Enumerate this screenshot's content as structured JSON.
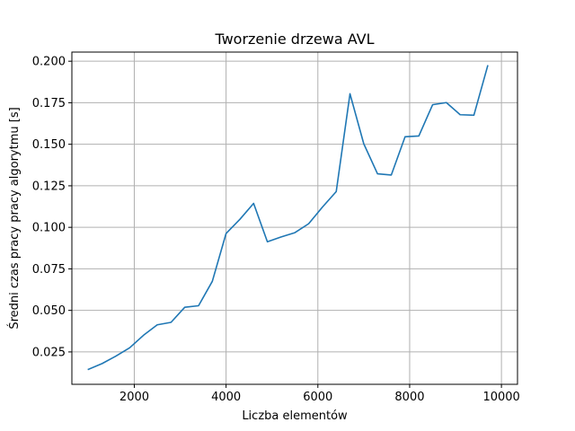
{
  "chart_data": {
    "type": "line",
    "title": "Tworzenie drzewa AVL",
    "xlabel": "Liczba elementów",
    "ylabel": "Średni czas pracy pracy algorytmu [s]",
    "xlim": [
      640,
      10350
    ],
    "ylim": [
      0.0055,
      0.2055
    ],
    "x_ticks": [
      2000,
      4000,
      6000,
      8000,
      10000
    ],
    "x_tick_labels": [
      "2000",
      "4000",
      "6000",
      "8000",
      "10000"
    ],
    "y_ticks": [
      0.025,
      0.05,
      0.075,
      0.1,
      0.125,
      0.15,
      0.175,
      0.2
    ],
    "y_tick_labels": [
      "0.025",
      "0.050",
      "0.075",
      "0.100",
      "0.125",
      "0.150",
      "0.175",
      "0.200"
    ],
    "grid": true,
    "series": [
      {
        "color": "#1f77b4",
        "x": [
          1000,
          1300,
          1600,
          1900,
          2200,
          2500,
          2800,
          3100,
          3400,
          3700,
          4000,
          4300,
          4600,
          4900,
          5200,
          5500,
          5800,
          6100,
          6400,
          6700,
          7000,
          7300,
          7600,
          7900,
          8200,
          8500,
          8800,
          9100,
          9400,
          9700
        ],
        "y": [
          0.0145,
          0.018,
          0.0225,
          0.0275,
          0.035,
          0.0413,
          0.0428,
          0.0519,
          0.0528,
          0.0675,
          0.0963,
          0.1048,
          0.1144,
          0.0913,
          0.0942,
          0.0968,
          0.1022,
          0.1122,
          0.1215,
          0.1804,
          0.1503,
          0.1322,
          0.1315,
          0.1545,
          0.155,
          0.1738,
          0.1751,
          0.1678,
          0.1675,
          0.1972
        ]
      }
    ]
  }
}
